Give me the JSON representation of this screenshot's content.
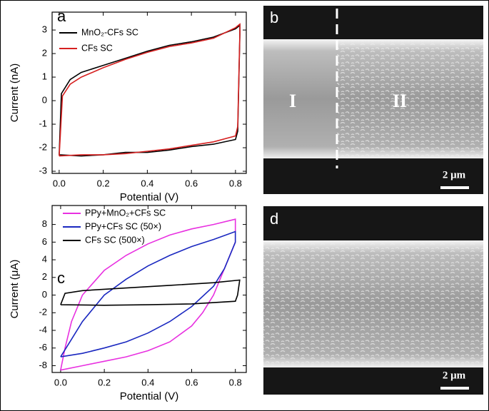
{
  "chart_data": [
    {
      "type": "line",
      "label": "a",
      "xlabel": "Potential (V)",
      "ylabel": "Current (nA)",
      "xlim": [
        -0.032,
        0.849
      ],
      "ylim": [
        -3.09,
        3.76
      ],
      "xticks": [
        {
          "value": 0,
          "label": "0.0"
        },
        0.2,
        0.4,
        0.6,
        0.8
      ],
      "yticks": [
        -3,
        -2,
        -1,
        0,
        1,
        2,
        3
      ],
      "series": [
        {
          "name": "MnO₂-CFs SC",
          "color": "#000000",
          "x": [
            0,
            0.01,
            0.05,
            0.1,
            0.2,
            0.3,
            0.4,
            0.5,
            0.6,
            0.7,
            0.8,
            0.82,
            0.82,
            0.81,
            0.8,
            0.7,
            0.6,
            0.5,
            0.4,
            0.3,
            0.2,
            0.1,
            0
          ],
          "values": [
            -2.3,
            0.3,
            0.9,
            1.2,
            1.5,
            1.8,
            2.1,
            2.35,
            2.5,
            2.7,
            3.05,
            3.2,
            2.8,
            -1.3,
            -1.65,
            -1.85,
            -1.95,
            -2.1,
            -2.2,
            -2.2,
            -2.3,
            -2.35,
            -2.3
          ]
        },
        {
          "name": "CFs SC",
          "color": "#d62020",
          "x": [
            0,
            0.015,
            0.05,
            0.1,
            0.2,
            0.3,
            0.4,
            0.5,
            0.6,
            0.7,
            0.8,
            0.82,
            0.82,
            0.81,
            0.8,
            0.7,
            0.6,
            0.5,
            0.4,
            0.3,
            0.2,
            0.1,
            0
          ],
          "values": [
            -2.35,
            0.2,
            0.7,
            1.0,
            1.4,
            1.75,
            2.05,
            2.3,
            2.45,
            2.65,
            3.1,
            3.25,
            2.9,
            -1.1,
            -1.5,
            -1.75,
            -1.9,
            -2.05,
            -2.15,
            -2.25,
            -2.3,
            -2.3,
            -2.35
          ]
        }
      ]
    },
    {
      "type": "line",
      "label": "c",
      "xlabel": "Potential (V)",
      "ylabel": "Current (μA)",
      "xlim": [
        -0.039,
        0.85
      ],
      "ylim": [
        -8.77,
        10.15
      ],
      "xticks": [
        {
          "value": 0,
          "label": "0.0"
        },
        0.2,
        0.4,
        0.6,
        0.8
      ],
      "yticks": [
        -8,
        -6,
        -4,
        -2,
        0,
        2,
        4,
        6,
        8
      ],
      "series": [
        {
          "name": "PPy+MnO₂+CFs SC",
          "color": "#e830e0",
          "x": [
            0,
            0.02,
            0.05,
            0.1,
            0.2,
            0.3,
            0.4,
            0.5,
            0.6,
            0.7,
            0.8,
            0.8,
            0.75,
            0.7,
            0.65,
            0.6,
            0.5,
            0.4,
            0.3,
            0.2,
            0.1,
            0
          ],
          "values": [
            -8.5,
            -6,
            -3,
            0,
            2.8,
            4.5,
            5.8,
            6.8,
            7.5,
            8,
            8.6,
            6,
            3,
            0,
            -2,
            -3.5,
            -5.3,
            -6.3,
            -7,
            -7.5,
            -8,
            -8.5
          ]
        },
        {
          "name": "PPy+CFs SC (50×)",
          "color": "#1a28c0",
          "x": [
            0,
            0.05,
            0.1,
            0.2,
            0.3,
            0.4,
            0.5,
            0.6,
            0.7,
            0.8,
            0.8,
            0.75,
            0.7,
            0.6,
            0.5,
            0.4,
            0.3,
            0.2,
            0.1,
            0
          ],
          "values": [
            -7,
            -5,
            -3,
            0,
            1.8,
            3.3,
            4.5,
            5.5,
            6.3,
            7.2,
            6,
            3,
            1,
            -1.3,
            -3,
            -4.3,
            -5.3,
            -6,
            -6.6,
            -7
          ]
        },
        {
          "name": "CFs SC (500×)",
          "color": "#000000",
          "x": [
            0,
            0.02,
            0.1,
            0.3,
            0.5,
            0.7,
            0.82,
            0.81,
            0.8,
            0.6,
            0.4,
            0.2,
            0
          ],
          "values": [
            -1.1,
            0.2,
            0.5,
            0.8,
            1.1,
            1.4,
            1.7,
            0,
            -0.7,
            -1,
            -1.1,
            -1.15,
            -1.1
          ]
        }
      ]
    }
  ],
  "images": [
    {
      "label": "b",
      "regions": [
        "I",
        "II"
      ],
      "scale": "2 μm"
    },
    {
      "label": "d",
      "scale": "2 μm"
    }
  ]
}
